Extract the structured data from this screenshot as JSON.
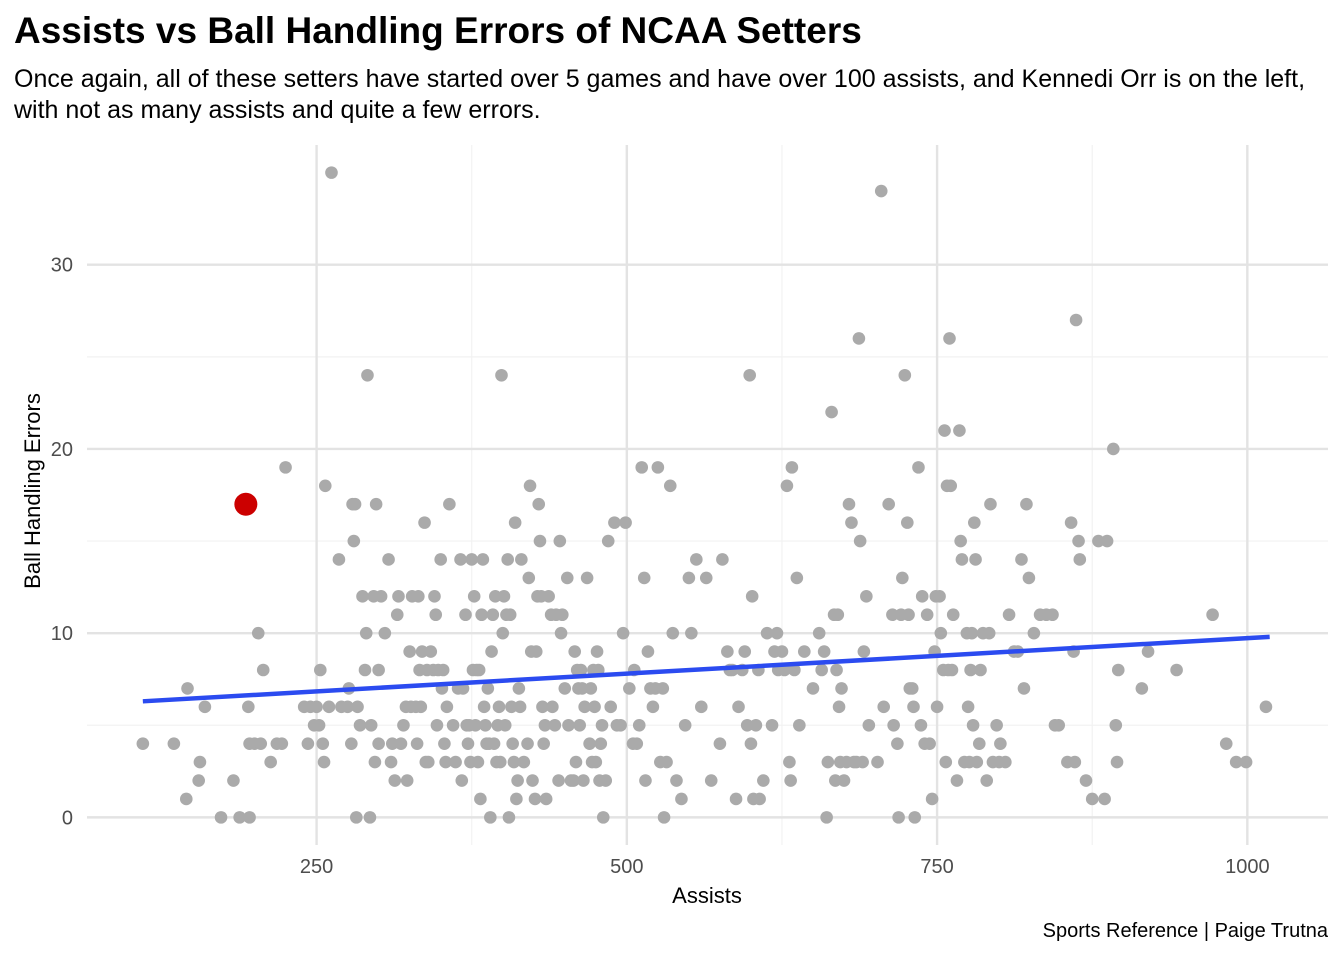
{
  "chart_data": {
    "type": "scatter",
    "title": "Assists vs Ball Handling Errors of NCAA Setters",
    "subtitle": "Once again, all of these setters have started over 5 games and have over 100 assists, and Kennedi Orr is on the left, with not as many assists and quite a few errors.",
    "caption": "Sports Reference | Paige Trutna",
    "xlabel": "Assists",
    "ylabel": "Ball Handling Errors",
    "xlim": [
      65,
      1065
    ],
    "ylim": [
      -1.5,
      36.5
    ],
    "x_ticks": [
      250,
      500,
      750,
      1000
    ],
    "y_ticks": [
      0,
      10,
      20,
      30
    ],
    "grid": true,
    "point_color": "#AAAAAA",
    "highlight_color": "#CC0000",
    "trend_color": "#2B4BF0",
    "highlight": {
      "x": 193,
      "y": 17
    },
    "trend_line": {
      "x": [
        110,
        1018
      ],
      "y": [
        6.3,
        9.8
      ]
    },
    "points": [
      [
        110,
        4
      ],
      [
        135,
        4
      ],
      [
        145,
        1
      ],
      [
        146,
        7
      ],
      [
        155,
        2
      ],
      [
        156,
        3
      ],
      [
        160,
        6
      ],
      [
        173,
        0
      ],
      [
        183,
        2
      ],
      [
        188,
        0
      ],
      [
        196,
        0
      ],
      [
        195,
        6
      ],
      [
        196,
        4
      ],
      [
        200,
        4
      ],
      [
        203,
        10
      ],
      [
        205,
        4
      ],
      [
        207,
        8
      ],
      [
        213,
        3
      ],
      [
        218,
        4
      ],
      [
        222,
        4
      ],
      [
        225,
        19
      ],
      [
        240,
        6
      ],
      [
        243,
        4
      ],
      [
        245,
        6
      ],
      [
        248,
        5
      ],
      [
        250,
        6
      ],
      [
        252,
        5
      ],
      [
        253,
        8
      ],
      [
        255,
        4
      ],
      [
        256,
        3
      ],
      [
        257,
        18
      ],
      [
        260,
        6
      ],
      [
        262,
        35
      ],
      [
        268,
        14
      ],
      [
        270,
        6
      ],
      [
        275,
        6
      ],
      [
        276,
        7
      ],
      [
        278,
        4
      ],
      [
        279,
        17
      ],
      [
        280,
        15
      ],
      [
        281,
        17
      ],
      [
        282,
        0
      ],
      [
        283,
        6
      ],
      [
        285,
        5
      ],
      [
        287,
        12
      ],
      [
        289,
        8
      ],
      [
        290,
        10
      ],
      [
        291,
        24
      ],
      [
        293,
        0
      ],
      [
        294,
        5
      ],
      [
        296,
        12
      ],
      [
        297,
        3
      ],
      [
        298,
        17
      ],
      [
        300,
        8
      ],
      [
        300,
        4
      ],
      [
        302,
        12
      ],
      [
        305,
        10
      ],
      [
        308,
        14
      ],
      [
        310,
        3
      ],
      [
        311,
        4
      ],
      [
        313,
        2
      ],
      [
        315,
        11
      ],
      [
        316,
        12
      ],
      [
        318,
        4
      ],
      [
        320,
        5
      ],
      [
        322,
        6
      ],
      [
        323,
        2
      ],
      [
        325,
        9
      ],
      [
        326,
        6
      ],
      [
        327,
        12
      ],
      [
        330,
        6
      ],
      [
        331,
        4
      ],
      [
        332,
        12
      ],
      [
        333,
        8
      ],
      [
        334,
        6
      ],
      [
        335,
        9
      ],
      [
        337,
        16
      ],
      [
        338,
        3
      ],
      [
        339,
        8
      ],
      [
        340,
        3
      ],
      [
        342,
        9
      ],
      [
        344,
        8
      ],
      [
        345,
        12
      ],
      [
        346,
        11
      ],
      [
        347,
        5
      ],
      [
        348,
        8
      ],
      [
        350,
        14
      ],
      [
        351,
        7
      ],
      [
        352,
        8
      ],
      [
        353,
        4
      ],
      [
        354,
        3
      ],
      [
        355,
        6
      ],
      [
        357,
        17
      ],
      [
        360,
        5
      ],
      [
        362,
        3
      ],
      [
        364,
        7
      ],
      [
        366,
        14
      ],
      [
        367,
        2
      ],
      [
        368,
        7
      ],
      [
        370,
        11
      ],
      [
        371,
        5
      ],
      [
        372,
        4
      ],
      [
        373,
        5
      ],
      [
        374,
        3
      ],
      [
        375,
        14
      ],
      [
        376,
        8
      ],
      [
        377,
        12
      ],
      [
        378,
        5
      ],
      [
        379,
        8
      ],
      [
        380,
        3
      ],
      [
        381,
        8
      ],
      [
        382,
        1
      ],
      [
        383,
        11
      ],
      [
        384,
        14
      ],
      [
        385,
        6
      ],
      [
        386,
        5
      ],
      [
        387,
        4
      ],
      [
        388,
        7
      ],
      [
        389,
        4
      ],
      [
        390,
        0
      ],
      [
        391,
        9
      ],
      [
        392,
        11
      ],
      [
        393,
        4
      ],
      [
        394,
        12
      ],
      [
        395,
        3
      ],
      [
        396,
        5
      ],
      [
        397,
        6
      ],
      [
        398,
        3
      ],
      [
        399,
        24
      ],
      [
        400,
        10
      ],
      [
        401,
        12
      ],
      [
        402,
        5
      ],
      [
        403,
        11
      ],
      [
        404,
        14
      ],
      [
        405,
        0
      ],
      [
        406,
        11
      ],
      [
        407,
        6
      ],
      [
        408,
        4
      ],
      [
        409,
        3
      ],
      [
        410,
        16
      ],
      [
        411,
        1
      ],
      [
        412,
        2
      ],
      [
        413,
        7
      ],
      [
        414,
        6
      ],
      [
        415,
        14
      ],
      [
        417,
        3
      ],
      [
        420,
        4
      ],
      [
        421,
        13
      ],
      [
        422,
        18
      ],
      [
        423,
        9
      ],
      [
        424,
        2
      ],
      [
        426,
        1
      ],
      [
        427,
        9
      ],
      [
        428,
        12
      ],
      [
        429,
        17
      ],
      [
        430,
        15
      ],
      [
        431,
        12
      ],
      [
        432,
        6
      ],
      [
        433,
        4
      ],
      [
        434,
        5
      ],
      [
        435,
        1
      ],
      [
        437,
        12
      ],
      [
        439,
        11
      ],
      [
        440,
        6
      ],
      [
        442,
        5
      ],
      [
        443,
        11
      ],
      [
        445,
        2
      ],
      [
        446,
        15
      ],
      [
        447,
        10
      ],
      [
        448,
        11
      ],
      [
        450,
        7
      ],
      [
        452,
        13
      ],
      [
        453,
        5
      ],
      [
        455,
        2
      ],
      [
        457,
        2
      ],
      [
        458,
        9
      ],
      [
        459,
        3
      ],
      [
        460,
        8
      ],
      [
        461,
        7
      ],
      [
        462,
        5
      ],
      [
        463,
        8
      ],
      [
        464,
        7
      ],
      [
        465,
        2
      ],
      [
        466,
        6
      ],
      [
        468,
        13
      ],
      [
        470,
        4
      ],
      [
        471,
        7
      ],
      [
        472,
        3
      ],
      [
        473,
        8
      ],
      [
        474,
        6
      ],
      [
        475,
        3
      ],
      [
        476,
        9
      ],
      [
        477,
        8
      ],
      [
        478,
        2
      ],
      [
        479,
        4
      ],
      [
        480,
        5
      ],
      [
        481,
        0
      ],
      [
        483,
        2
      ],
      [
        485,
        15
      ],
      [
        487,
        6
      ],
      [
        490,
        16
      ],
      [
        492,
        5
      ],
      [
        495,
        5
      ],
      [
        497,
        10
      ],
      [
        499,
        16
      ],
      [
        502,
        7
      ],
      [
        505,
        4
      ],
      [
        506,
        8
      ],
      [
        508,
        4
      ],
      [
        510,
        5
      ],
      [
        512,
        19
      ],
      [
        514,
        13
      ],
      [
        515,
        2
      ],
      [
        517,
        9
      ],
      [
        519,
        7
      ],
      [
        521,
        6
      ],
      [
        523,
        7
      ],
      [
        525,
        19
      ],
      [
        527,
        3
      ],
      [
        529,
        7
      ],
      [
        530,
        0
      ],
      [
        532,
        3
      ],
      [
        535,
        18
      ],
      [
        537,
        10
      ],
      [
        540,
        2
      ],
      [
        544,
        1
      ],
      [
        547,
        5
      ],
      [
        550,
        13
      ],
      [
        552,
        10
      ],
      [
        556,
        14
      ],
      [
        560,
        6
      ],
      [
        564,
        13
      ],
      [
        568,
        2
      ],
      [
        575,
        4
      ],
      [
        577,
        14
      ],
      [
        581,
        9
      ],
      [
        583,
        8
      ],
      [
        585,
        8
      ],
      [
        588,
        1
      ],
      [
        590,
        6
      ],
      [
        593,
        8
      ],
      [
        595,
        9
      ],
      [
        597,
        5
      ],
      [
        599,
        24
      ],
      [
        600,
        4
      ],
      [
        601,
        12
      ],
      [
        602,
        1
      ],
      [
        604,
        5
      ],
      [
        606,
        8
      ],
      [
        607,
        1
      ],
      [
        610,
        2
      ],
      [
        613,
        10
      ],
      [
        617,
        5
      ],
      [
        619,
        9
      ],
      [
        621,
        10
      ],
      [
        622,
        8
      ],
      [
        625,
        9
      ],
      [
        627,
        8
      ],
      [
        629,
        18
      ],
      [
        631,
        3
      ],
      [
        632,
        2
      ],
      [
        633,
        19
      ],
      [
        635,
        8
      ],
      [
        637,
        13
      ],
      [
        639,
        5
      ],
      [
        643,
        9
      ],
      [
        650,
        7
      ],
      [
        655,
        10
      ],
      [
        657,
        8
      ],
      [
        659,
        9
      ],
      [
        661,
        0
      ],
      [
        662,
        3
      ],
      [
        665,
        22
      ],
      [
        667,
        11
      ],
      [
        668,
        2
      ],
      [
        669,
        8
      ],
      [
        670,
        11
      ],
      [
        671,
        6
      ],
      [
        672,
        3
      ],
      [
        673,
        7
      ],
      [
        675,
        2
      ],
      [
        677,
        3
      ],
      [
        679,
        17
      ],
      [
        681,
        16
      ],
      [
        683,
        3
      ],
      [
        685,
        3
      ],
      [
        687,
        26
      ],
      [
        688,
        15
      ],
      [
        690,
        3
      ],
      [
        691,
        9
      ],
      [
        693,
        12
      ],
      [
        695,
        5
      ],
      [
        702,
        3
      ],
      [
        705,
        34
      ],
      [
        707,
        6
      ],
      [
        711,
        17
      ],
      [
        714,
        11
      ],
      [
        715,
        5
      ],
      [
        718,
        4
      ],
      [
        719,
        0
      ],
      [
        721,
        11
      ],
      [
        722,
        13
      ],
      [
        724,
        24
      ],
      [
        726,
        16
      ],
      [
        727,
        11
      ],
      [
        728,
        7
      ],
      [
        730,
        7
      ],
      [
        731,
        6
      ],
      [
        732,
        0
      ],
      [
        735,
        19
      ],
      [
        737,
        5
      ],
      [
        738,
        12
      ],
      [
        740,
        4
      ],
      [
        742,
        11
      ],
      [
        744,
        4
      ],
      [
        746,
        1
      ],
      [
        748,
        9
      ],
      [
        749,
        12
      ],
      [
        750,
        6
      ],
      [
        752,
        12
      ],
      [
        753,
        10
      ],
      [
        755,
        8
      ],
      [
        756,
        21
      ],
      [
        757,
        3
      ],
      [
        758,
        18
      ],
      [
        759,
        8
      ],
      [
        760,
        26
      ],
      [
        761,
        18
      ],
      [
        762,
        8
      ],
      [
        763,
        11
      ],
      [
        766,
        2
      ],
      [
        768,
        21
      ],
      [
        769,
        15
      ],
      [
        770,
        14
      ],
      [
        772,
        3
      ],
      [
        774,
        10
      ],
      [
        775,
        6
      ],
      [
        776,
        3
      ],
      [
        777,
        8
      ],
      [
        778,
        10
      ],
      [
        779,
        5
      ],
      [
        780,
        16
      ],
      [
        781,
        14
      ],
      [
        782,
        3
      ],
      [
        784,
        4
      ],
      [
        785,
        8
      ],
      [
        787,
        10
      ],
      [
        790,
        2
      ],
      [
        792,
        10
      ],
      [
        793,
        17
      ],
      [
        795,
        3
      ],
      [
        798,
        5
      ],
      [
        800,
        3
      ],
      [
        801,
        4
      ],
      [
        805,
        3
      ],
      [
        808,
        11
      ],
      [
        812,
        9
      ],
      [
        815,
        9
      ],
      [
        818,
        14
      ],
      [
        820,
        7
      ],
      [
        822,
        17
      ],
      [
        824,
        13
      ],
      [
        828,
        10
      ],
      [
        833,
        11
      ],
      [
        838,
        11
      ],
      [
        843,
        11
      ],
      [
        845,
        5
      ],
      [
        848,
        5
      ],
      [
        855,
        3
      ],
      [
        858,
        16
      ],
      [
        860,
        9
      ],
      [
        861,
        3
      ],
      [
        862,
        27
      ],
      [
        864,
        15
      ],
      [
        865,
        14
      ],
      [
        870,
        2
      ],
      [
        875,
        1
      ],
      [
        880,
        15
      ],
      [
        885,
        1
      ],
      [
        887,
        15
      ],
      [
        892,
        20
      ],
      [
        894,
        5
      ],
      [
        895,
        3
      ],
      [
        896,
        8
      ],
      [
        915,
        7
      ],
      [
        920,
        9
      ],
      [
        943,
        8
      ],
      [
        972,
        11
      ],
      [
        983,
        4
      ],
      [
        991,
        3
      ],
      [
        999,
        3
      ],
      [
        1015,
        6
      ]
    ]
  }
}
